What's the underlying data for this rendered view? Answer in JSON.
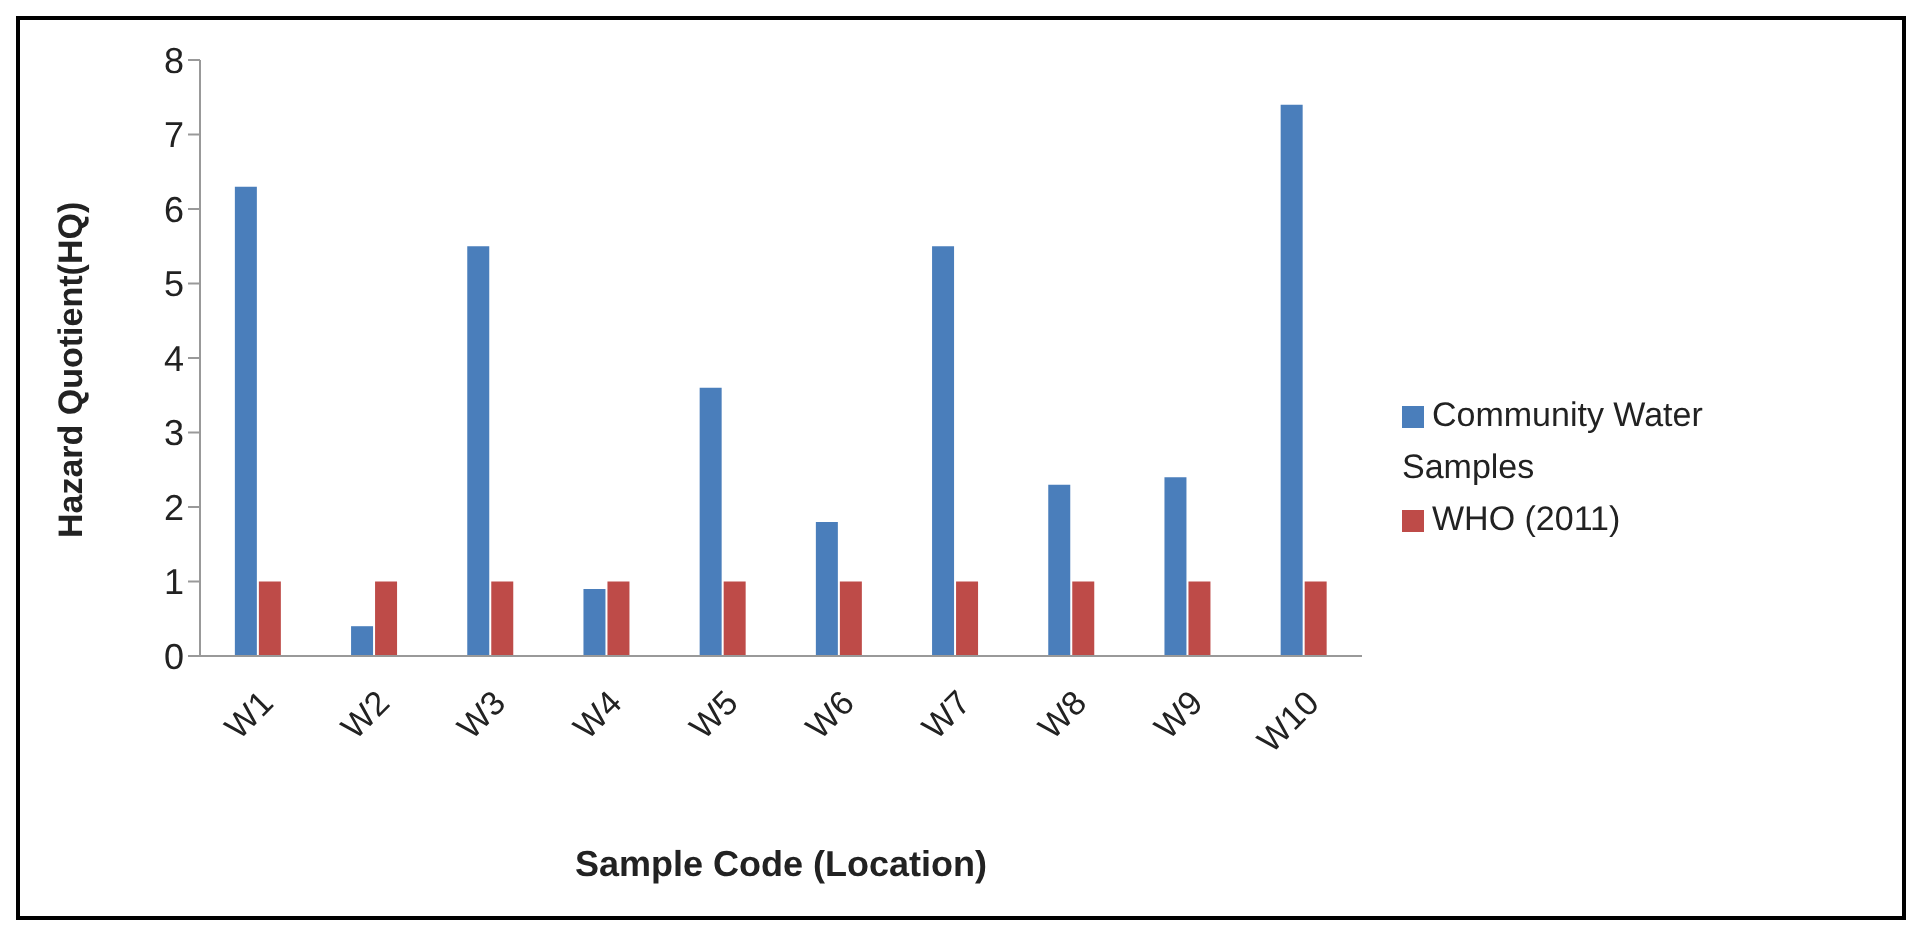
{
  "chart_data": {
    "type": "bar",
    "xlabel": "Sample Code (Location)",
    "ylabel": "Hazard Quotient(HQ)",
    "categories": [
      "W1",
      "W2",
      "W3",
      "W4",
      "W5",
      "W6",
      "W7",
      "W8",
      "W9",
      "W10"
    ],
    "series": [
      {
        "name": "Community Water Samples",
        "color": "#4a7ebb",
        "values": [
          6.3,
          0.4,
          5.5,
          0.9,
          3.6,
          1.8,
          5.5,
          2.3,
          2.4,
          7.4
        ]
      },
      {
        "name": "WHO (2011)",
        "color": "#be4b48",
        "values": [
          1,
          1,
          1,
          1,
          1,
          1,
          1,
          1,
          1,
          1
        ]
      }
    ],
    "ylim": [
      0,
      8
    ],
    "yticks": [
      0,
      1,
      2,
      3,
      4,
      5,
      6,
      7,
      8
    ],
    "legend": "right"
  }
}
